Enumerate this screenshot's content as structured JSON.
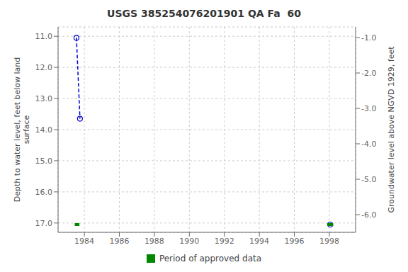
{
  "chart_data": {
    "type": "scatter",
    "title": "USGS 385254076201901 QA Fa  60",
    "ylabel": "Depth to water level, feet below land\n surface",
    "y2label": "Groundwater level above NGVD 1929, feet",
    "xlim": [
      1982.5,
      1999.5
    ],
    "xticks": [
      1984,
      1986,
      1988,
      1990,
      1992,
      1994,
      1996,
      1998
    ],
    "ylim": [
      17.3,
      10.7
    ],
    "yticks": [
      {
        "value": 11,
        "label": "11.0"
      },
      {
        "value": 12,
        "label": "12.0"
      },
      {
        "value": 13,
        "label": "13.0"
      },
      {
        "value": 14,
        "label": "14.0"
      },
      {
        "value": 15,
        "label": "15.0"
      },
      {
        "value": 16,
        "label": "16.0"
      },
      {
        "value": 17,
        "label": "17.0"
      }
    ],
    "y2lim": [
      -6.5,
      -0.7
    ],
    "y2ticks": [
      {
        "value": -1,
        "label": "-1.0"
      },
      {
        "value": -2,
        "label": "-2.0"
      },
      {
        "value": -3,
        "label": "-3.0"
      },
      {
        "value": -4,
        "label": "-4.0"
      },
      {
        "value": -5,
        "label": "-5.0"
      },
      {
        "value": -6,
        "label": "-6.0"
      }
    ],
    "grid": true,
    "legend": "bottom",
    "series": [
      {
        "type": "line",
        "x": [
          1983.55,
          1983.75
        ],
        "values": [
          11.05,
          13.65
        ],
        "color": "#0000cc",
        "line_style": "dashed",
        "marker": "none"
      },
      {
        "type": "scatter",
        "x": [
          1983.55,
          1983.75,
          1998.05
        ],
        "values": [
          11.05,
          13.65,
          17.05
        ],
        "color": "#0000cc",
        "marker": "open_circle"
      },
      {
        "type": "line",
        "name": "Period of approved data",
        "x": [
          1983.45,
          1983.72
        ],
        "values": [
          17.05,
          17.05
        ],
        "color": "#008800",
        "line_style": "solid",
        "marker": "none"
      },
      {
        "type": "line",
        "x": [
          1997.88,
          1998.22
        ],
        "values": [
          17.05,
          17.05
        ],
        "color": "#008800",
        "line_style": "solid",
        "marker": "none"
      }
    ]
  }
}
